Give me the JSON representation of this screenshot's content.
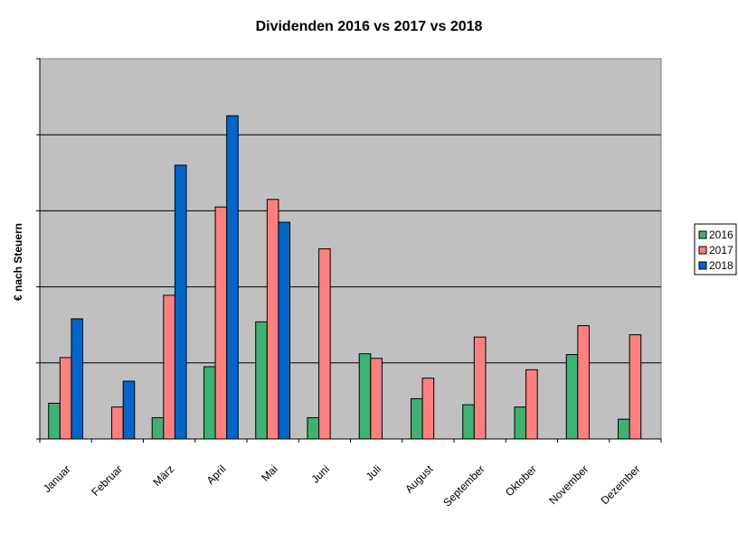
{
  "chart_data": {
    "type": "bar",
    "title": "Dividenden 2016 vs 2017 vs 2018",
    "xlabel": "",
    "ylabel": "€ nach Steuern",
    "categories": [
      "Januar",
      "Februar",
      "März",
      "April",
      "Mai",
      "Juni",
      "Juli",
      "August",
      "September",
      "Oktober",
      "November",
      "Dezember"
    ],
    "series": [
      {
        "name": "2016",
        "color": "#3CB371",
        "values": [
          0.47,
          0,
          0.28,
          0.95,
          1.54,
          0.28,
          1.12,
          0.53,
          0.45,
          0.42,
          1.11,
          0.26
        ]
      },
      {
        "name": "2017",
        "color": "#FF7F7F",
        "values": [
          1.07,
          0.42,
          1.89,
          3.05,
          3.15,
          2.5,
          1.06,
          0.8,
          1.34,
          0.91,
          1.49,
          1.37
        ]
      },
      {
        "name": "2018",
        "color": "#0066CC",
        "values": [
          1.58,
          0.76,
          3.6,
          4.25,
          2.85,
          0,
          0,
          0,
          0,
          0,
          0,
          0
        ]
      }
    ],
    "ylim": [
      0,
      5
    ],
    "y_gridlines": [
      1,
      2,
      3,
      4
    ],
    "grid": true,
    "y_tick_labels_shown": false,
    "legend_position": "right",
    "plot_background": "#C0C0C0"
  }
}
